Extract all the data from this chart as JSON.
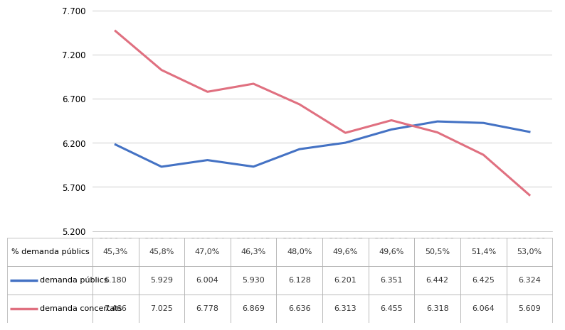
{
  "categories": [
    "2011-12",
    "2012-13",
    "2013-14",
    "2014-15",
    "2015-16",
    "2016-17",
    "2017-18",
    "2018-19",
    "2019-20",
    "2020-21"
  ],
  "demanda_publics": [
    6180,
    5929,
    6004,
    5930,
    6128,
    6201,
    6351,
    6442,
    6425,
    6324
  ],
  "demanda_concertats": [
    7466,
    7025,
    6778,
    6869,
    6636,
    6313,
    6455,
    6318,
    6064,
    5609
  ],
  "pct_demanda_publics": [
    "45,3%",
    "45,8%",
    "47,0%",
    "46,3%",
    "48,0%",
    "49,6%",
    "49,6%",
    "50,5%",
    "51,4%",
    "53,0%"
  ],
  "demanda_publics_labels": [
    "6.180",
    "5.929",
    "6.004",
    "5.930",
    "6.128",
    "6.201",
    "6.351",
    "6.442",
    "6.425",
    "6.324"
  ],
  "demanda_concertats_labels": [
    "7.466",
    "7.025",
    "6.778",
    "6.869",
    "6.636",
    "6.313",
    "6.455",
    "6.318",
    "6.064",
    "5.609"
  ],
  "color_publics": "#4472C4",
  "color_concertats": "#E07080",
  "ylim_min": 5200,
  "ylim_max": 7700,
  "yticks": [
    5200,
    5700,
    6200,
    6700,
    7200,
    7700
  ],
  "legend_publics": "demanda públics",
  "legend_concertats": "demanda concertats",
  "legend_pct": "% demanda públics",
  "background_color": "#ffffff",
  "line_width": 2.2,
  "fig_width": 7.74,
  "fig_height": 4.54,
  "dpi": 100
}
